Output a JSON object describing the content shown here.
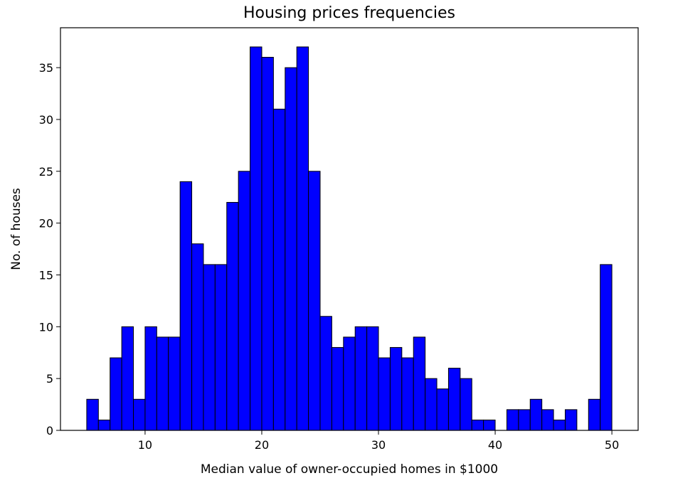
{
  "chart_data": {
    "type": "bar",
    "title": "Housing prices frequencies",
    "xlabel": "Median value of owner-occupied homes in $1000",
    "ylabel": "No. of houses",
    "xlim": [
      2.75,
      52.25
    ],
    "ylim": [
      0,
      38.85
    ],
    "bin_start": 5,
    "bin_width": 1,
    "values": [
      3,
      1,
      7,
      10,
      3,
      10,
      9,
      9,
      24,
      18,
      16,
      16,
      22,
      25,
      37,
      36,
      31,
      35,
      37,
      25,
      11,
      8,
      9,
      10,
      10,
      7,
      8,
      7,
      9,
      5,
      4,
      6,
      5,
      1,
      1,
      0,
      2,
      2,
      3,
      2,
      1,
      2,
      0,
      3,
      16
    ],
    "x_ticks": [
      10,
      20,
      30,
      40,
      50
    ],
    "y_ticks": [
      0,
      5,
      10,
      15,
      20,
      25,
      30,
      35
    ],
    "bar_color": "#0000ff",
    "edge_color": "#000000",
    "grid": false,
    "legend": "none"
  }
}
